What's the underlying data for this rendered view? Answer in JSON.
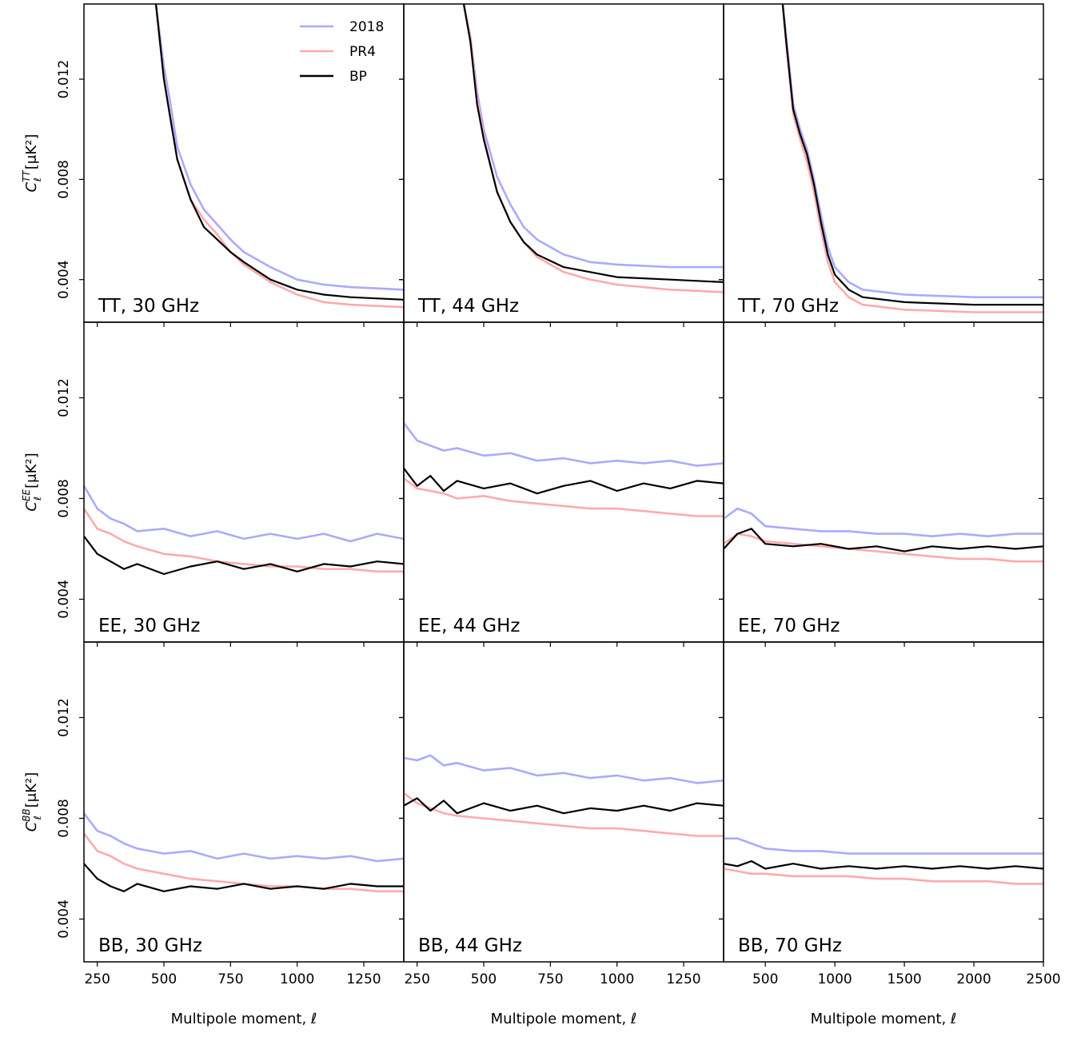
{
  "chart_data": [
    {
      "type": "line",
      "label": "TT, 30 GHz",
      "ylabel": {
        "symbol": "C",
        "sub": "ℓ",
        "sup": "TT",
        "unit": "[μK²]"
      },
      "legend": "upper right",
      "xlim": [
        200,
        1400
      ],
      "ylim": [
        0.0023,
        0.015
      ],
      "xticks": [
        250,
        500,
        750,
        1000,
        1250
      ],
      "yticks": [
        0.004,
        0.008,
        0.012
      ],
      "x": [
        470,
        500,
        525,
        550,
        600,
        650,
        700,
        750,
        800,
        900,
        1000,
        1100,
        1200,
        1400
      ],
      "series": [
        {
          "name": "2018",
          "color": "#aaaaff",
          "values": [
            0.015,
            0.0125,
            0.011,
            0.0093,
            0.0078,
            0.0068,
            0.0062,
            0.0056,
            0.0051,
            0.0045,
            0.004,
            0.0038,
            0.0037,
            0.0036
          ]
        },
        {
          "name": "PR4",
          "color": "#ffaaaa",
          "values": [
            0.015,
            0.012,
            0.0104,
            0.0088,
            0.0072,
            0.0064,
            0.0058,
            0.0051,
            0.0046,
            0.0039,
            0.0034,
            0.0031,
            0.003,
            0.0029
          ]
        },
        {
          "name": "BP",
          "color": "#000000",
          "values": [
            0.015,
            0.012,
            0.0104,
            0.0088,
            0.0072,
            0.0061,
            0.0056,
            0.0051,
            0.0047,
            0.004,
            0.0036,
            0.0034,
            0.0033,
            0.0032
          ]
        }
      ]
    },
    {
      "type": "line",
      "label": "TT, 44 GHz",
      "xlim": [
        200,
        1400
      ],
      "ylim": [
        0.0023,
        0.015
      ],
      "xticks": [
        250,
        500,
        750,
        1000,
        1250
      ],
      "yticks": [
        0.004,
        0.008,
        0.012
      ],
      "x": [
        425,
        450,
        475,
        500,
        550,
        600,
        650,
        700,
        800,
        900,
        1000,
        1200,
        1400
      ],
      "series": [
        {
          "name": "2018",
          "color": "#aaaaff",
          "values": [
            0.015,
            0.0137,
            0.0115,
            0.01,
            0.0081,
            0.007,
            0.0061,
            0.0056,
            0.005,
            0.0047,
            0.0046,
            0.0045,
            0.0045
          ]
        },
        {
          "name": "PR4",
          "color": "#ffaaaa",
          "values": [
            0.015,
            0.0136,
            0.0112,
            0.0097,
            0.0075,
            0.0063,
            0.0055,
            0.0049,
            0.0043,
            0.004,
            0.0038,
            0.0036,
            0.0035
          ]
        },
        {
          "name": "BP",
          "color": "#000000",
          "values": [
            0.015,
            0.0135,
            0.011,
            0.0096,
            0.0075,
            0.0063,
            0.0055,
            0.005,
            0.0045,
            0.0043,
            0.0041,
            0.004,
            0.0039
          ]
        }
      ]
    },
    {
      "type": "line",
      "label": "TT, 70 GHz",
      "xlim": [
        200,
        2500
      ],
      "ylim": [
        0.0023,
        0.015
      ],
      "xticks": [
        500,
        1000,
        1500,
        2000,
        2500
      ],
      "yticks": [
        0.004,
        0.008,
        0.012
      ],
      "x": [
        625,
        650,
        700,
        750,
        800,
        850,
        900,
        950,
        1000,
        1100,
        1200,
        1500,
        2000,
        2500
      ],
      "series": [
        {
          "name": "2018",
          "color": "#aaaaff",
          "values": [
            0.015,
            0.0137,
            0.011,
            0.01,
            0.0092,
            0.008,
            0.0066,
            0.0053,
            0.0045,
            0.0039,
            0.0036,
            0.0034,
            0.0033,
            0.0033
          ]
        },
        {
          "name": "PR4",
          "color": "#ffaaaa",
          "values": [
            0.015,
            0.0134,
            0.0106,
            0.0096,
            0.0087,
            0.0075,
            0.006,
            0.0047,
            0.0039,
            0.0033,
            0.003,
            0.0028,
            0.0027,
            0.0027
          ]
        },
        {
          "name": "BP",
          "color": "#000000",
          "values": [
            0.015,
            0.0135,
            0.0108,
            0.0098,
            0.009,
            0.0078,
            0.0063,
            0.005,
            0.0042,
            0.0036,
            0.0033,
            0.0031,
            0.003,
            0.003
          ]
        }
      ]
    },
    {
      "type": "line",
      "label": "EE, 30 GHz",
      "ylabel": {
        "symbol": "C",
        "sub": "ℓ",
        "sup": "EE",
        "unit": "[μK²]"
      },
      "xlim": [
        200,
        1400
      ],
      "ylim": [
        0.0023,
        0.015
      ],
      "xticks": [
        250,
        500,
        750,
        1000,
        1250
      ],
      "yticks": [
        0.004,
        0.008,
        0.012
      ],
      "x": [
        200,
        250,
        300,
        350,
        400,
        500,
        600,
        700,
        800,
        900,
        1000,
        1100,
        1200,
        1300,
        1400
      ],
      "series": [
        {
          "name": "2018",
          "color": "#aaaaff",
          "values": [
            0.0085,
            0.0076,
            0.0072,
            0.007,
            0.0067,
            0.0068,
            0.0065,
            0.0067,
            0.0064,
            0.0066,
            0.0064,
            0.0066,
            0.0063,
            0.0066,
            0.0064
          ]
        },
        {
          "name": "PR4",
          "color": "#ffaaaa",
          "values": [
            0.0076,
            0.0068,
            0.0066,
            0.0063,
            0.0061,
            0.0058,
            0.0057,
            0.0055,
            0.0054,
            0.0053,
            0.0053,
            0.0052,
            0.0052,
            0.0051,
            0.0051
          ]
        },
        {
          "name": "BP",
          "color": "#000000",
          "values": [
            0.0065,
            0.0058,
            0.0055,
            0.0052,
            0.0054,
            0.005,
            0.0053,
            0.0055,
            0.0052,
            0.0054,
            0.0051,
            0.0054,
            0.0053,
            0.0055,
            0.0054
          ]
        }
      ]
    },
    {
      "type": "line",
      "label": "EE, 44 GHz",
      "xlim": [
        200,
        1400
      ],
      "ylim": [
        0.0023,
        0.015
      ],
      "xticks": [
        250,
        500,
        750,
        1000,
        1250
      ],
      "yticks": [
        0.004,
        0.008,
        0.012
      ],
      "x": [
        200,
        250,
        300,
        350,
        400,
        500,
        600,
        700,
        800,
        900,
        1000,
        1100,
        1200,
        1300,
        1400
      ],
      "series": [
        {
          "name": "2018",
          "color": "#aaaaff",
          "values": [
            0.011,
            0.0103,
            0.0101,
            0.0099,
            0.01,
            0.0097,
            0.0098,
            0.0095,
            0.0096,
            0.0094,
            0.0095,
            0.0094,
            0.0095,
            0.0093,
            0.0094
          ]
        },
        {
          "name": "PR4",
          "color": "#ffaaaa",
          "values": [
            0.0088,
            0.0084,
            0.0083,
            0.0082,
            0.008,
            0.0081,
            0.0079,
            0.0078,
            0.0077,
            0.0076,
            0.0076,
            0.0075,
            0.0074,
            0.0073,
            0.0073
          ]
        },
        {
          "name": "BP",
          "color": "#000000",
          "values": [
            0.0092,
            0.0085,
            0.0089,
            0.0083,
            0.0087,
            0.0084,
            0.0086,
            0.0082,
            0.0085,
            0.0087,
            0.0083,
            0.0086,
            0.0084,
            0.0087,
            0.0086
          ]
        }
      ]
    },
    {
      "type": "line",
      "label": "EE, 70 GHz",
      "xlim": [
        200,
        2500
      ],
      "ylim": [
        0.0023,
        0.015
      ],
      "xticks": [
        500,
        1000,
        1500,
        2000,
        2500
      ],
      "yticks": [
        0.004,
        0.008,
        0.012
      ],
      "x": [
        200,
        300,
        400,
        500,
        700,
        900,
        1100,
        1300,
        1500,
        1700,
        1900,
        2100,
        2300,
        2500
      ],
      "series": [
        {
          "name": "2018",
          "color": "#aaaaff",
          "values": [
            0.0072,
            0.0076,
            0.0074,
            0.0069,
            0.0068,
            0.0067,
            0.0067,
            0.0066,
            0.0066,
            0.0065,
            0.0066,
            0.0065,
            0.0066,
            0.0066
          ]
        },
        {
          "name": "PR4",
          "color": "#ffaaaa",
          "values": [
            0.0062,
            0.0066,
            0.0065,
            0.0063,
            0.0062,
            0.0061,
            0.006,
            0.0059,
            0.0058,
            0.0057,
            0.0056,
            0.0056,
            0.0055,
            0.0055
          ]
        },
        {
          "name": "BP",
          "color": "#000000",
          "values": [
            0.006,
            0.0066,
            0.0068,
            0.0062,
            0.0061,
            0.0062,
            0.006,
            0.0061,
            0.0059,
            0.0061,
            0.006,
            0.0061,
            0.006,
            0.0061
          ]
        }
      ]
    },
    {
      "type": "line",
      "label": "BB, 30 GHz",
      "ylabel": {
        "symbol": "C",
        "sub": "ℓ",
        "sup": "BB",
        "unit": "[μK²]"
      },
      "xlabel": "Multipole moment, ℓ",
      "xlim": [
        200,
        1400
      ],
      "ylim": [
        0.0023,
        0.015
      ],
      "xticks": [
        250,
        500,
        750,
        1000,
        1250
      ],
      "yticks": [
        0.004,
        0.008,
        0.012
      ],
      "x": [
        200,
        250,
        300,
        350,
        400,
        500,
        600,
        700,
        800,
        900,
        1000,
        1100,
        1200,
        1300,
        1400
      ],
      "series": [
        {
          "name": "2018",
          "color": "#aaaaff",
          "values": [
            0.0082,
            0.0075,
            0.0073,
            0.007,
            0.0068,
            0.0066,
            0.0067,
            0.0064,
            0.0066,
            0.0064,
            0.0065,
            0.0064,
            0.0065,
            0.0063,
            0.0064
          ]
        },
        {
          "name": "PR4",
          "color": "#ffaaaa",
          "values": [
            0.0074,
            0.0067,
            0.0065,
            0.0062,
            0.006,
            0.0058,
            0.0056,
            0.0055,
            0.0054,
            0.0053,
            0.0053,
            0.0052,
            0.0052,
            0.0051,
            0.0051
          ]
        },
        {
          "name": "BP",
          "color": "#000000",
          "values": [
            0.0062,
            0.0056,
            0.0053,
            0.0051,
            0.0054,
            0.0051,
            0.0053,
            0.0052,
            0.0054,
            0.0052,
            0.0053,
            0.0052,
            0.0054,
            0.0053,
            0.0053
          ]
        }
      ]
    },
    {
      "type": "line",
      "label": "BB, 44 GHz",
      "xlabel": "Multipole moment, ℓ",
      "xlim": [
        200,
        1400
      ],
      "ylim": [
        0.0023,
        0.015
      ],
      "xticks": [
        250,
        500,
        750,
        1000,
        1250
      ],
      "yticks": [
        0.004,
        0.008,
        0.012
      ],
      "x": [
        200,
        250,
        300,
        350,
        400,
        500,
        600,
        700,
        800,
        900,
        1000,
        1100,
        1200,
        1300,
        1400
      ],
      "series": [
        {
          "name": "2018",
          "color": "#aaaaff",
          "values": [
            0.0104,
            0.0103,
            0.0105,
            0.0101,
            0.0102,
            0.0099,
            0.01,
            0.0097,
            0.0098,
            0.0096,
            0.0097,
            0.0095,
            0.0096,
            0.0094,
            0.0095
          ]
        },
        {
          "name": "PR4",
          "color": "#ffaaaa",
          "values": [
            0.009,
            0.0086,
            0.0084,
            0.0082,
            0.0081,
            0.008,
            0.0079,
            0.0078,
            0.0077,
            0.0076,
            0.0076,
            0.0075,
            0.0074,
            0.0073,
            0.0073
          ]
        },
        {
          "name": "BP",
          "color": "#000000",
          "values": [
            0.0085,
            0.0088,
            0.0083,
            0.0087,
            0.0082,
            0.0086,
            0.0083,
            0.0085,
            0.0082,
            0.0084,
            0.0083,
            0.0085,
            0.0083,
            0.0086,
            0.0085
          ]
        }
      ]
    },
    {
      "type": "line",
      "label": "BB, 70 GHz",
      "xlabel": "Multipole moment, ℓ",
      "xlim": [
        200,
        2500
      ],
      "ylim": [
        0.0023,
        0.015
      ],
      "xticks": [
        500,
        1000,
        1500,
        2000,
        2500
      ],
      "yticks": [
        0.004,
        0.008,
        0.012
      ],
      "x": [
        200,
        300,
        400,
        500,
        700,
        900,
        1100,
        1300,
        1500,
        1700,
        1900,
        2100,
        2300,
        2500
      ],
      "series": [
        {
          "name": "2018",
          "color": "#aaaaff",
          "values": [
            0.0072,
            0.0072,
            0.007,
            0.0068,
            0.0067,
            0.0067,
            0.0066,
            0.0066,
            0.0066,
            0.0066,
            0.0066,
            0.0066,
            0.0066,
            0.0066
          ]
        },
        {
          "name": "PR4",
          "color": "#ffaaaa",
          "values": [
            0.006,
            0.0059,
            0.0058,
            0.0058,
            0.0057,
            0.0057,
            0.0057,
            0.0056,
            0.0056,
            0.0055,
            0.0055,
            0.0055,
            0.0054,
            0.0054
          ]
        },
        {
          "name": "BP",
          "color": "#000000",
          "values": [
            0.0062,
            0.0061,
            0.0063,
            0.006,
            0.0062,
            0.006,
            0.0061,
            0.006,
            0.0061,
            0.006,
            0.0061,
            0.006,
            0.0061,
            0.006
          ]
        }
      ]
    }
  ]
}
